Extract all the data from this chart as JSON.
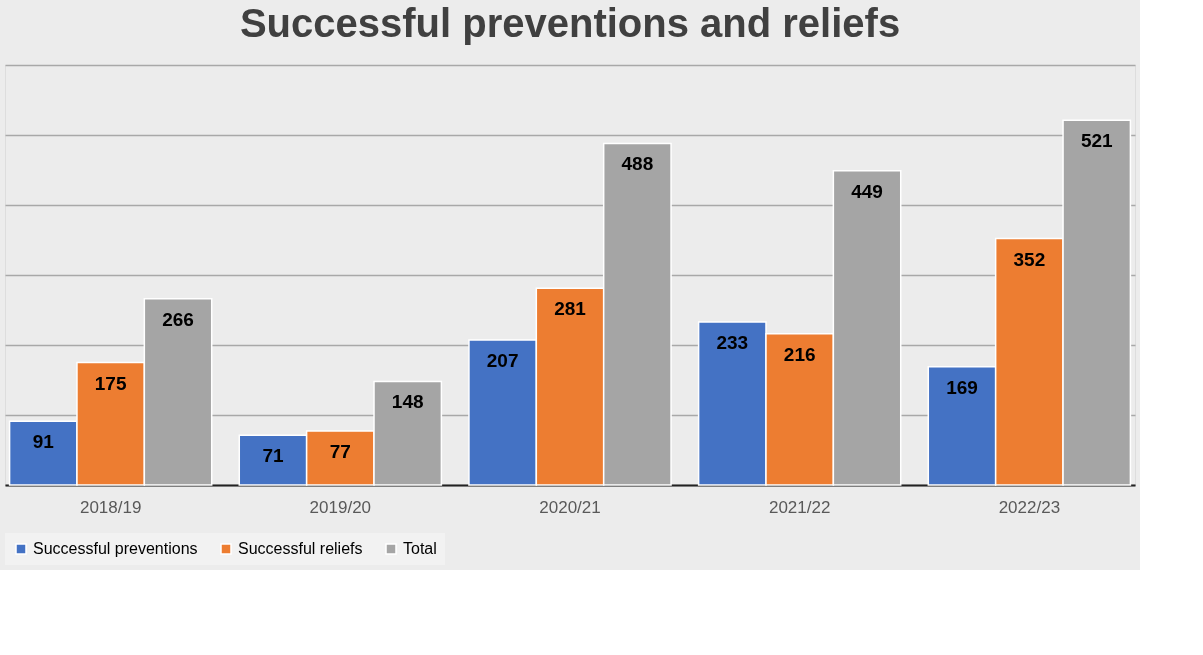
{
  "chart_data": {
    "type": "bar",
    "title": "Successful preventions and reliefs",
    "categories": [
      "2018/19",
      "2019/20",
      "2020/21",
      "2021/22",
      "2022/23"
    ],
    "series": [
      {
        "name": "Successful preventions",
        "color": "#4472c4",
        "values": [
          91,
          71,
          207,
          233,
          169
        ]
      },
      {
        "name": "Successful reliefs",
        "color": "#ed7d31",
        "values": [
          175,
          77,
          281,
          216,
          352
        ]
      },
      {
        "name": "Total",
        "color": "#a5a5a5",
        "values": [
          266,
          148,
          488,
          449,
          521
        ]
      }
    ],
    "ylim": [
      0,
      600
    ],
    "yticks": [
      {
        "value": 0,
        "label": null
      },
      {
        "value": 100,
        "label": null
      },
      {
        "value": 200,
        "label": null
      },
      {
        "value": 300,
        "label": null
      },
      {
        "value": 400,
        "label": null
      },
      {
        "value": 500,
        "label": null
      },
      {
        "value": 600,
        "label": null
      }
    ],
    "tick_labels": "x",
    "grid": "y",
    "legend": "bottom",
    "data_labels": true
  }
}
